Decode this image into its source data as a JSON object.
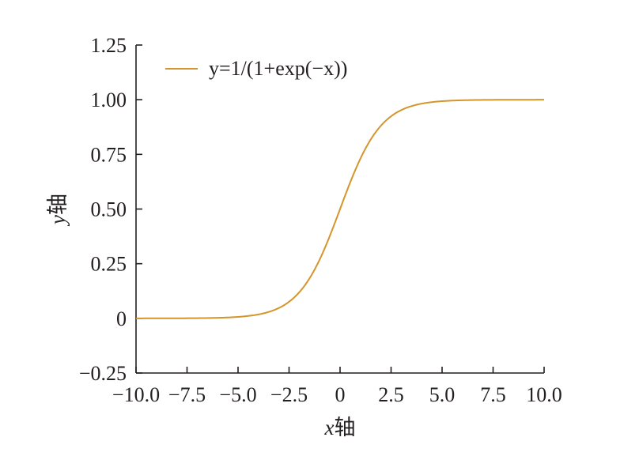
{
  "chart_data": {
    "type": "line",
    "x_axis_label": {
      "variable": "x",
      "suffix": "轴"
    },
    "y_axis_label": {
      "variable": "y",
      "suffix": "轴"
    },
    "xlim": [
      -10.0,
      10.0
    ],
    "ylim": [
      -0.25,
      1.25
    ],
    "x_ticks": [
      -10.0,
      -7.5,
      -5.0,
      -2.5,
      0,
      2.5,
      5.0,
      7.5,
      10.0
    ],
    "x_tick_labels": [
      "−10.0",
      "−7.5",
      "−5.0",
      "−2.5",
      "0",
      "2.5",
      "5.0",
      "7.5",
      "10.0"
    ],
    "y_ticks": [
      -0.25,
      0,
      0.25,
      0.5,
      0.75,
      1.0,
      1.25
    ],
    "y_tick_labels": [
      "−0.25",
      "0",
      "0.25",
      "0.50",
      "0.75",
      "1.00",
      "1.25"
    ],
    "grid": false,
    "legend_position": "top-left",
    "series": [
      {
        "name": "y=1/(1+exp(−x))",
        "color": "#d4952c",
        "x": [
          -10,
          -9,
          -8,
          -7,
          -6,
          -5,
          -4,
          -3,
          -2,
          -1.5,
          -1,
          -0.5,
          0,
          0.5,
          1,
          1.5,
          2,
          3,
          4,
          5,
          6,
          7,
          8,
          9,
          10
        ],
        "y": [
          0.0,
          0.0001,
          0.0003,
          0.0009,
          0.0025,
          0.0067,
          0.018,
          0.0474,
          0.1192,
          0.1824,
          0.2689,
          0.3775,
          0.5,
          0.6225,
          0.7311,
          0.8176,
          0.8808,
          0.9526,
          0.982,
          0.9933,
          0.9975,
          0.9991,
          0.9997,
          0.9999,
          1.0
        ]
      }
    ]
  }
}
